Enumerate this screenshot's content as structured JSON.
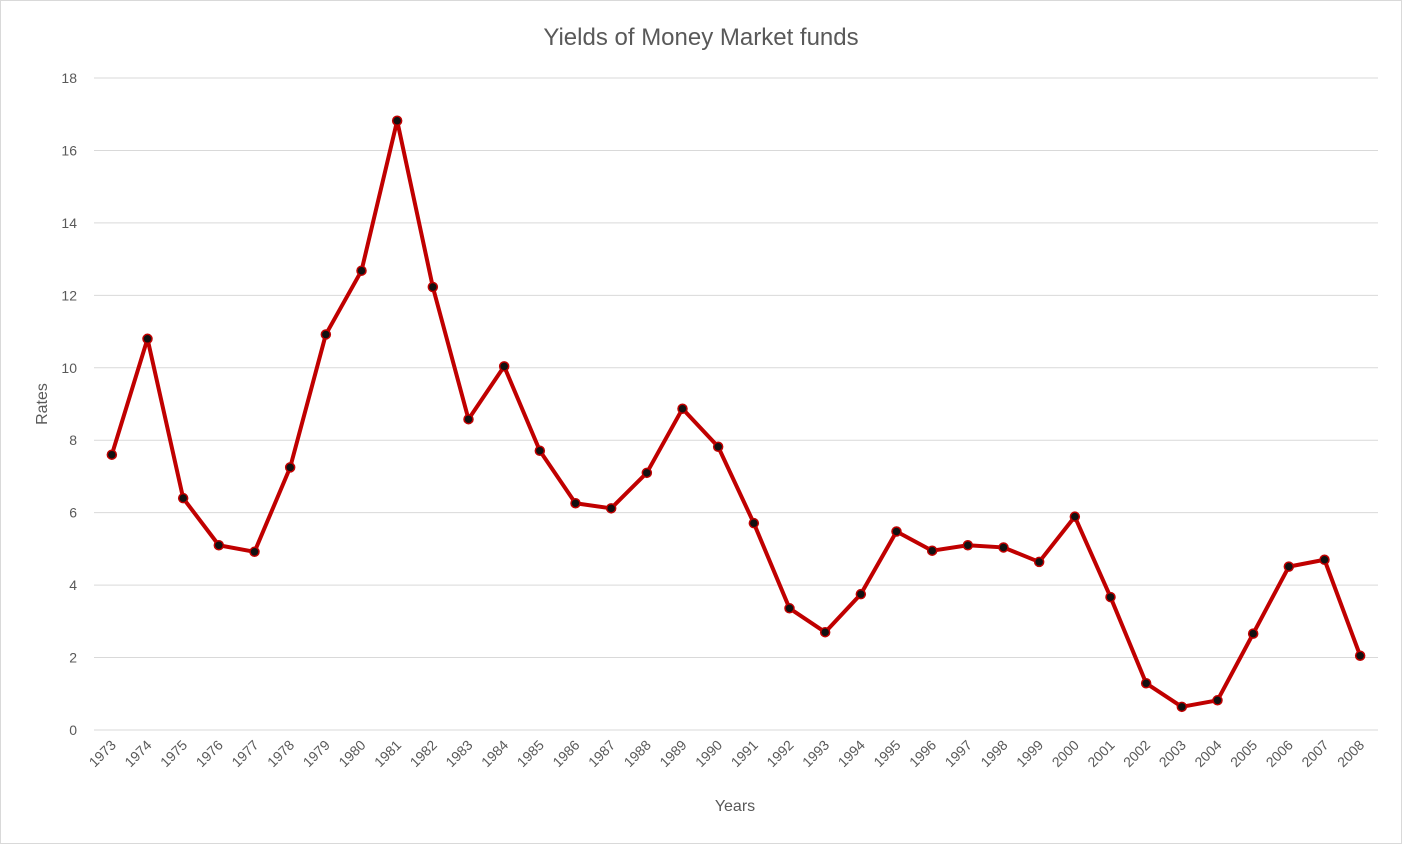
{
  "chart_data": {
    "type": "line",
    "title": "Yields of Money Market funds",
    "xlabel": "Years",
    "ylabel": "Rates",
    "ylim": [
      0,
      18
    ],
    "yticks": [
      0,
      2,
      4,
      6,
      8,
      10,
      12,
      14,
      16,
      18
    ],
    "grid": true,
    "legend": "none",
    "categories": [
      "1973",
      "1974",
      "1975",
      "1976",
      "1977",
      "1978",
      "1979",
      "1980",
      "1981",
      "1982",
      "1983",
      "1984",
      "1985",
      "1986",
      "1987",
      "1988",
      "1989",
      "1990",
      "1991",
      "1992",
      "1993",
      "1994",
      "1995",
      "1996",
      "1997",
      "1998",
      "1999",
      "2000",
      "2001",
      "2002",
      "2003",
      "2004",
      "2005",
      "2006",
      "2007",
      "2008"
    ],
    "series": [
      {
        "color": "#c00000",
        "marker_color": "#111111",
        "values": [
          7.6,
          10.8,
          6.4,
          5.1,
          4.92,
          7.25,
          10.92,
          12.68,
          16.82,
          12.23,
          8.58,
          10.04,
          7.71,
          6.26,
          6.12,
          7.1,
          8.87,
          7.82,
          5.71,
          3.36,
          2.7,
          3.75,
          5.48,
          4.95,
          5.1,
          5.04,
          4.64,
          5.89,
          3.67,
          1.29,
          0.64,
          0.82,
          2.66,
          4.51,
          4.7,
          2.05
        ]
      }
    ]
  }
}
